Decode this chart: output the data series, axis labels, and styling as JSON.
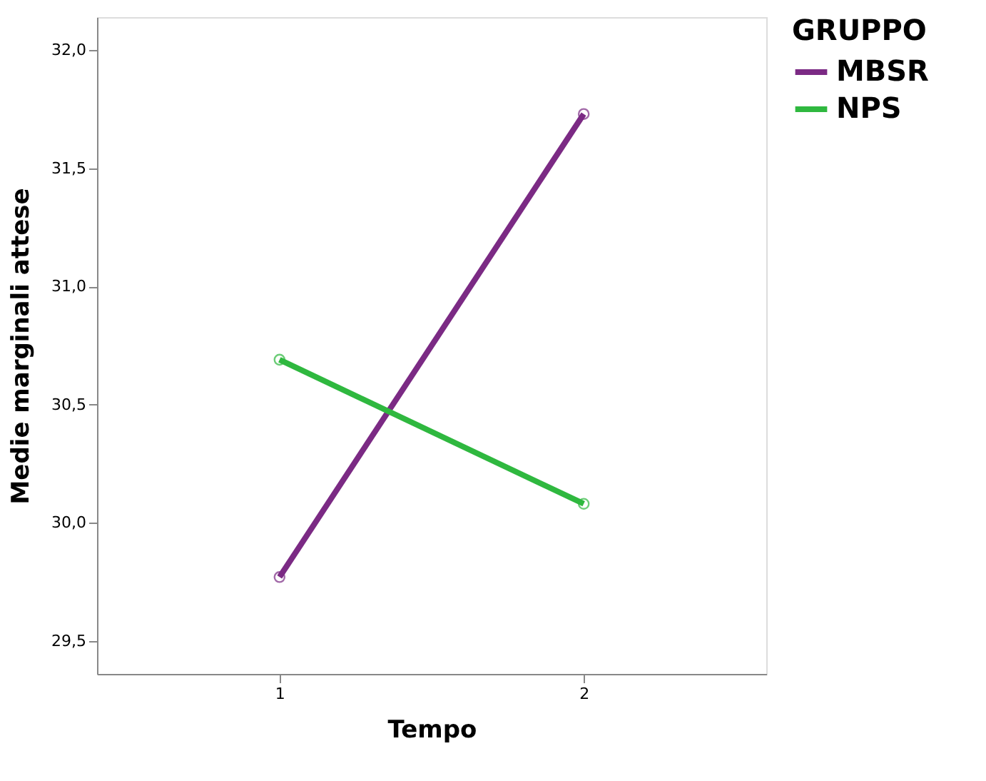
{
  "chart_data": {
    "type": "line",
    "xlabel": "Tempo",
    "ylabel": "Medie marginali attese",
    "legend_title": "GRUPPO",
    "categories": [
      "1",
      "2"
    ],
    "series": [
      {
        "name": "MBSR",
        "color": "#7b2a84",
        "values": [
          29.77,
          31.73
        ]
      },
      {
        "name": "NPS",
        "color": "#2fb83f",
        "values": [
          30.69,
          30.08
        ]
      }
    ],
    "ylim": [
      29.36,
      32.14
    ],
    "yticks": [
      {
        "value": 29.5,
        "label": "29,5"
      },
      {
        "value": 30.0,
        "label": "30,0"
      },
      {
        "value": 30.5,
        "label": "30,5"
      },
      {
        "value": 31.0,
        "label": "31,0"
      },
      {
        "value": 31.5,
        "label": "31,5"
      },
      {
        "value": 32.0,
        "label": "32,0"
      }
    ],
    "grid": false,
    "legend": "top right",
    "marker": "circle",
    "line_style": "solid"
  }
}
